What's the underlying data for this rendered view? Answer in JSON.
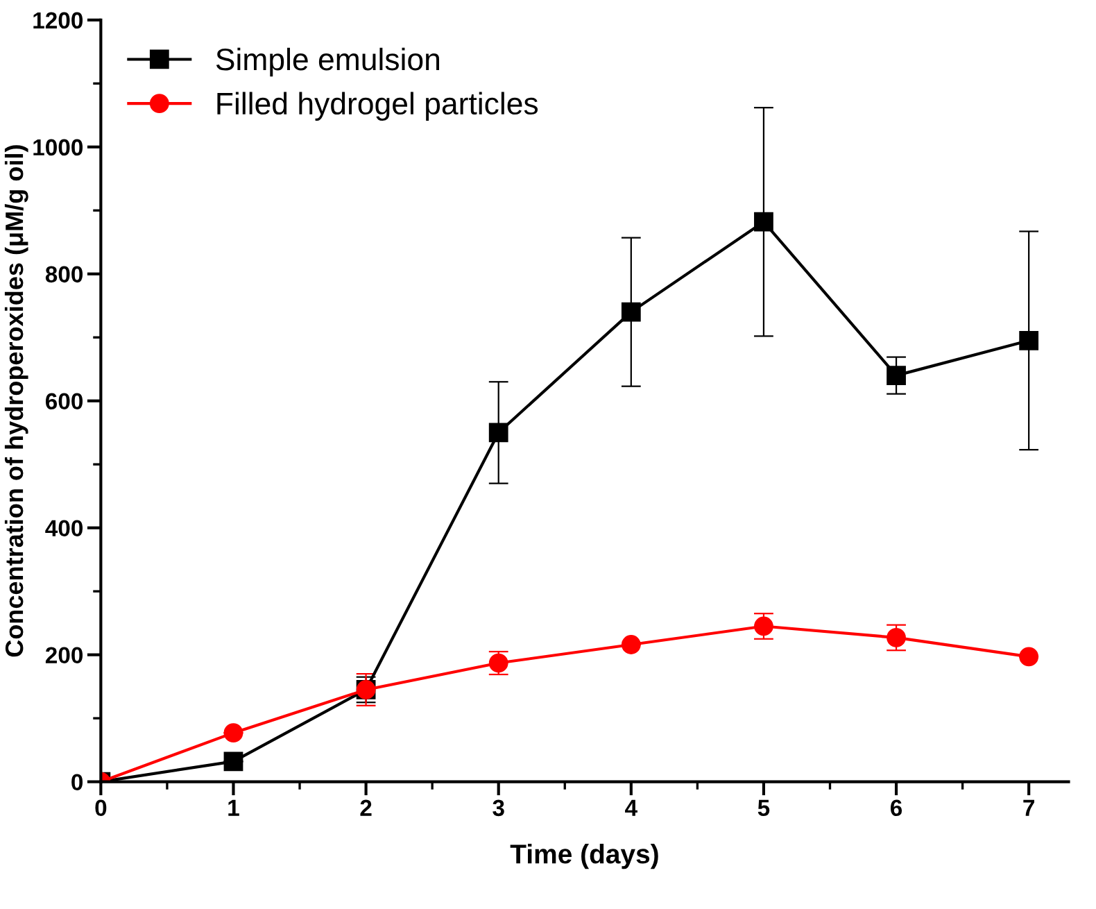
{
  "chart_data": {
    "type": "line",
    "xlabel": "Time (days)",
    "ylabel": "Concentration of hydroperoxides (μM/g oil)",
    "x": [
      0,
      1,
      2,
      3,
      4,
      5,
      6,
      7
    ],
    "series": [
      {
        "name": "Simple emulsion",
        "color": "#000000",
        "marker": "square",
        "values": [
          0,
          32,
          145,
          550,
          740,
          882,
          640,
          695
        ],
        "errors": [
          null,
          null,
          20,
          80,
          117,
          180,
          29,
          172
        ]
      },
      {
        "name": "Filled hydrogel particles",
        "color": "#ff0000",
        "marker": "circle",
        "values": [
          0,
          77,
          145,
          187,
          216,
          245,
          227,
          197
        ],
        "errors": [
          null,
          null,
          25,
          18,
          null,
          20,
          20,
          null
        ]
      }
    ],
    "xlim": [
      0,
      7.3
    ],
    "ylim": [
      0,
      1200
    ],
    "xticks": [
      0,
      1,
      2,
      3,
      4,
      5,
      6,
      7
    ],
    "yticks": [
      0,
      200,
      400,
      600,
      800,
      1000,
      1200
    ],
    "grid": false,
    "legend": "top left",
    "line_style": "solid"
  }
}
